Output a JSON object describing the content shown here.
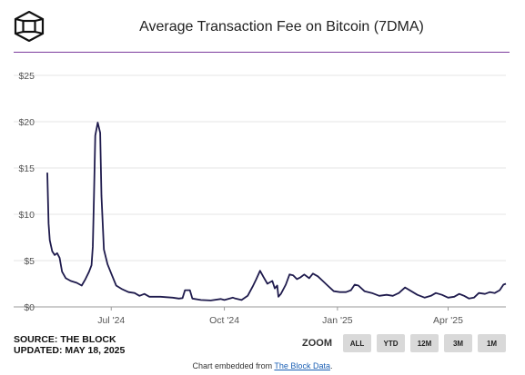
{
  "header": {
    "title": "Average Transaction Fee on Bitcoin (7DMA)"
  },
  "footer": {
    "source_line": "SOURCE: THE BLOCK",
    "updated_line": "UPDATED: MAY 18, 2025",
    "zoom_label": "ZOOM",
    "zoom_buttons": [
      "ALL",
      "YTD",
      "12M",
      "3M",
      "1M"
    ],
    "embed_prefix": "Chart embedded from ",
    "embed_link": "The Block Data",
    "embed_suffix": "."
  },
  "colors": {
    "line": "#1f1b4d",
    "title_rule": "#7b3a9c",
    "grid": "#e6e6e6"
  },
  "chart_data": {
    "type": "line",
    "title": "Average Transaction Fee on Bitcoin (7DMA)",
    "xlabel": "",
    "ylabel": "",
    "yunit": "$",
    "ylim": [
      0,
      25
    ],
    "yticks": [
      0,
      5,
      10,
      15,
      20,
      25
    ],
    "ytick_labels": [
      "$0",
      "$5",
      "$10",
      "$15",
      "$20",
      "$25"
    ],
    "xlim": [
      "2024-05-10",
      "2025-05-18"
    ],
    "xticks": [
      "2024-07-01",
      "2024-10-01",
      "2025-01-01",
      "2025-04-01"
    ],
    "xtick_labels": [
      "Jul '24",
      "Oct '24",
      "Jan '25",
      "Apr '25"
    ],
    "grid": true,
    "series": [
      {
        "points": [
          [
            "2024-05-10",
            14.5
          ],
          [
            "2024-05-11",
            9.0
          ],
          [
            "2024-05-12",
            7.2
          ],
          [
            "2024-05-14",
            6.0
          ],
          [
            "2024-05-16",
            5.6
          ],
          [
            "2024-05-18",
            5.8
          ],
          [
            "2024-05-20",
            5.3
          ],
          [
            "2024-05-22",
            3.8
          ],
          [
            "2024-05-25",
            3.1
          ],
          [
            "2024-05-29",
            2.8
          ],
          [
            "2024-06-03",
            2.6
          ],
          [
            "2024-06-07",
            2.3
          ],
          [
            "2024-06-10",
            3.0
          ],
          [
            "2024-06-13",
            3.8
          ],
          [
            "2024-06-15",
            4.5
          ],
          [
            "2024-06-16",
            6.5
          ],
          [
            "2024-06-17",
            12.0
          ],
          [
            "2024-06-18",
            18.5
          ],
          [
            "2024-06-20",
            19.9
          ],
          [
            "2024-06-22",
            18.8
          ],
          [
            "2024-06-23",
            12.0
          ],
          [
            "2024-06-25",
            6.2
          ],
          [
            "2024-06-28",
            4.6
          ],
          [
            "2024-07-01",
            3.6
          ],
          [
            "2024-07-05",
            2.3
          ],
          [
            "2024-07-10",
            1.9
          ],
          [
            "2024-07-15",
            1.6
          ],
          [
            "2024-07-20",
            1.5
          ],
          [
            "2024-07-24",
            1.2
          ],
          [
            "2024-07-28",
            1.4
          ],
          [
            "2024-08-01",
            1.1
          ],
          [
            "2024-08-10",
            1.1
          ],
          [
            "2024-08-20",
            1.0
          ],
          [
            "2024-08-25",
            0.9
          ],
          [
            "2024-08-28",
            0.95
          ],
          [
            "2024-08-30",
            1.8
          ],
          [
            "2024-09-03",
            1.8
          ],
          [
            "2024-09-05",
            0.9
          ],
          [
            "2024-09-12",
            0.75
          ],
          [
            "2024-09-20",
            0.7
          ],
          [
            "2024-09-28",
            0.85
          ],
          [
            "2024-10-01",
            0.75
          ],
          [
            "2024-10-08",
            1.0
          ],
          [
            "2024-10-10",
            0.9
          ],
          [
            "2024-10-15",
            0.75
          ],
          [
            "2024-10-20",
            1.2
          ],
          [
            "2024-10-24",
            2.2
          ],
          [
            "2024-10-27",
            3.0
          ],
          [
            "2024-10-30",
            3.9
          ],
          [
            "2024-11-02",
            3.2
          ],
          [
            "2024-11-05",
            2.5
          ],
          [
            "2024-11-09",
            2.8
          ],
          [
            "2024-11-11",
            2.0
          ],
          [
            "2024-11-13",
            2.3
          ],
          [
            "2024-11-14",
            1.1
          ],
          [
            "2024-11-16",
            1.4
          ],
          [
            "2024-11-20",
            2.4
          ],
          [
            "2024-11-23",
            3.5
          ],
          [
            "2024-11-26",
            3.4
          ],
          [
            "2024-11-29",
            3.0
          ],
          [
            "2024-12-02",
            3.2
          ],
          [
            "2024-12-05",
            3.5
          ],
          [
            "2024-12-09",
            3.1
          ],
          [
            "2024-12-12",
            3.6
          ],
          [
            "2024-12-16",
            3.3
          ],
          [
            "2024-12-20",
            2.8
          ],
          [
            "2024-12-24",
            2.3
          ],
          [
            "2024-12-29",
            1.7
          ],
          [
            "2025-01-03",
            1.6
          ],
          [
            "2025-01-08",
            1.6
          ],
          [
            "2025-01-12",
            1.8
          ],
          [
            "2025-01-15",
            2.4
          ],
          [
            "2025-01-18",
            2.3
          ],
          [
            "2025-01-23",
            1.7
          ],
          [
            "2025-01-29",
            1.5
          ],
          [
            "2025-02-04",
            1.2
          ],
          [
            "2025-02-10",
            1.3
          ],
          [
            "2025-02-15",
            1.2
          ],
          [
            "2025-02-20",
            1.5
          ],
          [
            "2025-02-25",
            2.1
          ],
          [
            "2025-03-02",
            1.7
          ],
          [
            "2025-03-07",
            1.3
          ],
          [
            "2025-03-13",
            1.0
          ],
          [
            "2025-03-18",
            1.2
          ],
          [
            "2025-03-22",
            1.5
          ],
          [
            "2025-03-27",
            1.3
          ],
          [
            "2025-04-01",
            1.0
          ],
          [
            "2025-04-06",
            1.1
          ],
          [
            "2025-04-10",
            1.4
          ],
          [
            "2025-04-14",
            1.2
          ],
          [
            "2025-04-18",
            0.9
          ],
          [
            "2025-04-22",
            1.0
          ],
          [
            "2025-04-26",
            1.5
          ],
          [
            "2025-05-01",
            1.4
          ],
          [
            "2025-05-05",
            1.6
          ],
          [
            "2025-05-09",
            1.5
          ],
          [
            "2025-05-13",
            1.8
          ],
          [
            "2025-05-16",
            2.4
          ],
          [
            "2025-05-18",
            2.5
          ]
        ]
      }
    ]
  }
}
